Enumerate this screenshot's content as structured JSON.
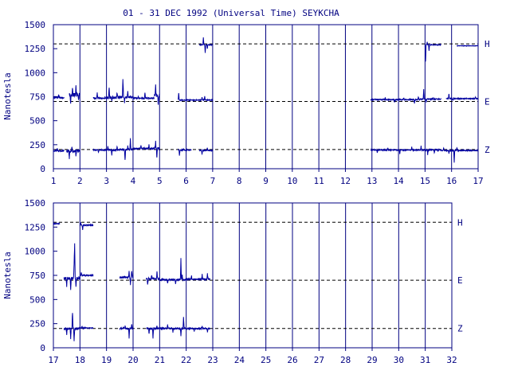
{
  "title": "01 - 31 DEC 1992 (Universal Time) SEYKCHA",
  "ylabel": "Nanotesla",
  "colors": {
    "frame": "#000080",
    "trace": "#0000a0",
    "background": "#ffffff"
  },
  "chart_data": [
    {
      "type": "line",
      "panel": "top",
      "title": "01 - 31 DEC 1992 (Universal Time) SEYKCHA",
      "xlabel": "",
      "ylabel": "Nanotesla",
      "xlim": [
        1,
        17
      ],
      "ylim": [
        0,
        1500
      ],
      "x_ticks": [
        "1",
        "2",
        "3",
        "4",
        "5",
        "6",
        "7",
        "8",
        "9",
        "10",
        "11",
        "12",
        "13",
        "14",
        "15",
        "16",
        "17"
      ],
      "y_ticks": [
        "0",
        "250",
        "500",
        "750",
        "1000",
        "1250",
        "1500"
      ],
      "vertical_grid": true,
      "baselines": [
        {
          "label": "H",
          "value": 1300
        },
        {
          "label": "E",
          "value": 700
        },
        {
          "label": "Z",
          "value": 200
        }
      ],
      "series": [
        {
          "name": "H",
          "segments": [
            {
              "start": 6.5,
              "end": 7.0,
              "base": 1290,
              "noise": 8,
              "spikes": [
                [
                  6.65,
                  80
                ],
                [
                  6.72,
                  -90
                ],
                [
                  6.8,
                  -40
                ]
              ]
            },
            {
              "start": 15.0,
              "end": 15.6,
              "base": 1290,
              "noise": 8,
              "spikes": [
                [
                  15.02,
                  -190
                ],
                [
                  15.08,
                  30
                ],
                [
                  15.15,
                  -60
                ]
              ]
            },
            {
              "start": 16.2,
              "end": 17.0,
              "base": 1280,
              "noise": 5,
              "spikes": []
            }
          ]
        },
        {
          "name": "E",
          "segments": [
            {
              "start": 1.0,
              "end": 1.4,
              "base": 740,
              "noise": 15,
              "spikes": [
                [
                  1.2,
                  30
                ]
              ]
            },
            {
              "start": 1.6,
              "end": 2.0,
              "base": 770,
              "noise": 40,
              "spikes": [
                [
                  1.65,
                  -80
                ],
                [
                  1.72,
                  80
                ],
                [
                  1.85,
                  100
                ],
                [
                  1.95,
                  -60
                ]
              ]
            },
            {
              "start": 2.5,
              "end": 3.0,
              "base": 735,
              "noise": 15,
              "spikes": [
                [
                  2.65,
                  60
                ]
              ]
            },
            {
              "start": 3.0,
              "end": 3.5,
              "base": 740,
              "noise": 30,
              "spikes": [
                [
                  3.1,
                  100
                ],
                [
                  3.2,
                  -40
                ],
                [
                  3.4,
                  60
                ]
              ]
            },
            {
              "start": 3.5,
              "end": 4.0,
              "base": 745,
              "noise": 25,
              "spikes": [
                [
                  3.62,
                  200
                ],
                [
                  3.68,
                  -60
                ],
                [
                  3.8,
                  60
                ]
              ]
            },
            {
              "start": 4.0,
              "end": 4.8,
              "base": 735,
              "noise": 12,
              "spikes": [
                [
                  4.2,
                  20
                ],
                [
                  4.45,
                  60
                ]
              ]
            },
            {
              "start": 4.8,
              "end": 5.0,
              "base": 760,
              "noise": 40,
              "spikes": [
                [
                  4.85,
                  120
                ],
                [
                  4.95,
                  -100
                ]
              ]
            },
            {
              "start": 5.7,
              "end": 7.0,
              "base": 715,
              "noise": 8,
              "spikes": [
                [
                  5.72,
                  80
                ],
                [
                  6.6,
                  30
                ],
                [
                  6.7,
                  40
                ]
              ]
            },
            {
              "start": 12.95,
              "end": 14.8,
              "base": 720,
              "noise": 10,
              "spikes": [
                [
                  13.5,
                  20
                ],
                [
                  13.85,
                  -25
                ],
                [
                  14.2,
                  20
                ],
                [
                  14.6,
                  -40
                ],
                [
                  14.75,
                  30
                ]
              ]
            },
            {
              "start": 14.8,
              "end": 15.6,
              "base": 725,
              "noise": 12,
              "spikes": [
                [
                  14.95,
                  100
                ],
                [
                  15.05,
                  -30
                ],
                [
                  15.3,
                  20
                ]
              ]
            },
            {
              "start": 15.8,
              "end": 17.0,
              "base": 730,
              "noise": 8,
              "spikes": [
                [
                  15.9,
                  50
                ],
                [
                  16.05,
                  -20
                ],
                [
                  16.9,
                  20
                ]
              ]
            }
          ]
        },
        {
          "name": "Z",
          "segments": [
            {
              "start": 1.0,
              "end": 1.4,
              "base": 185,
              "noise": 15,
              "spikes": [
                [
                  1.15,
                  30
                ]
              ]
            },
            {
              "start": 1.5,
              "end": 2.0,
              "base": 185,
              "noise": 30,
              "spikes": [
                [
                  1.6,
                  -70
                ],
                [
                  1.7,
                  40
                ],
                [
                  1.85,
                  -50
                ]
              ]
            },
            {
              "start": 2.5,
              "end": 3.5,
              "base": 195,
              "noise": 15,
              "spikes": [
                [
                  2.7,
                  -30
                ],
                [
                  3.05,
                  40
                ],
                [
                  3.2,
                  -50
                ],
                [
                  3.4,
                  30
                ]
              ]
            },
            {
              "start": 3.5,
              "end": 4.0,
              "base": 200,
              "noise": 20,
              "spikes": [
                [
                  3.7,
                  -110
                ],
                [
                  3.8,
                  40
                ],
                [
                  3.9,
                  110
                ]
              ]
            },
            {
              "start": 4.0,
              "end": 4.8,
              "base": 210,
              "noise": 15,
              "spikes": [
                [
                  4.3,
                  30
                ],
                [
                  4.6,
                  40
                ]
              ]
            },
            {
              "start": 4.8,
              "end": 5.0,
              "base": 210,
              "noise": 30,
              "spikes": [
                [
                  4.85,
                  70
                ],
                [
                  4.9,
                  -100
                ]
              ]
            },
            {
              "start": 5.7,
              "end": 6.2,
              "base": 195,
              "noise": 10,
              "spikes": [
                [
                  5.75,
                  -60
                ],
                [
                  5.9,
                  10
                ]
              ]
            },
            {
              "start": 6.5,
              "end": 7.0,
              "base": 190,
              "noise": 10,
              "spikes": [
                [
                  6.6,
                  -40
                ],
                [
                  6.8,
                  30
                ]
              ]
            },
            {
              "start": 12.95,
              "end": 15.0,
              "base": 195,
              "noise": 10,
              "spikes": [
                [
                  13.2,
                  -30
                ],
                [
                  13.6,
                  20
                ],
                [
                  14.05,
                  -40
                ],
                [
                  14.5,
                  30
                ],
                [
                  14.85,
                  40
                ]
              ]
            },
            {
              "start": 15.0,
              "end": 15.6,
              "base": 195,
              "noise": 15,
              "spikes": [
                [
                  15.1,
                  -50
                ],
                [
                  15.35,
                  -30
                ]
              ]
            },
            {
              "start": 15.6,
              "end": 17.0,
              "base": 190,
              "noise": 10,
              "spikes": [
                [
                  15.7,
                  30
                ],
                [
                  15.9,
                  -30
                ],
                [
                  16.1,
                  -130
                ],
                [
                  16.2,
                  30
                ]
              ]
            }
          ]
        }
      ]
    },
    {
      "type": "line",
      "panel": "bottom",
      "xlabel": "",
      "ylabel": "Nanotesla",
      "xlim": [
        17,
        32
      ],
      "ylim": [
        0,
        1500
      ],
      "x_ticks": [
        "17",
        "18",
        "19",
        "20",
        "21",
        "22",
        "23",
        "24",
        "25",
        "26",
        "27",
        "28",
        "29",
        "30",
        "31",
        "32"
      ],
      "y_ticks": [
        "0",
        "250",
        "500",
        "750",
        "1000",
        "1250",
        "1500"
      ],
      "vertical_grid": true,
      "baselines": [
        {
          "label": "H",
          "value": 1300
        },
        {
          "label": "E",
          "value": 700
        },
        {
          "label": "Z",
          "value": 200
        }
      ],
      "series": [
        {
          "name": "H",
          "segments": [
            {
              "start": 17.0,
              "end": 17.25,
              "base": 1285,
              "noise": 5,
              "spikes": []
            },
            {
              "start": 18.0,
              "end": 18.5,
              "base": 1270,
              "noise": 10,
              "spikes": [
                [
                  18.03,
                  30
                ],
                [
                  18.1,
                  -50
                ]
              ]
            }
          ]
        },
        {
          "name": "E",
          "segments": [
            {
              "start": 17.4,
              "end": 18.0,
              "base": 720,
              "noise": 30,
              "spikes": [
                [
                  17.5,
                  -80
                ],
                [
                  17.65,
                  -120
                ],
                [
                  17.78,
                  140
                ],
                [
                  17.8,
                  350
                ],
                [
                  17.85,
                  -80
                ]
              ]
            },
            {
              "start": 18.0,
              "end": 18.5,
              "base": 750,
              "noise": 10,
              "spikes": [
                [
                  18.05,
                  30
                ]
              ]
            },
            {
              "start": 19.5,
              "end": 20.0,
              "base": 730,
              "noise": 20,
              "spikes": [
                [
                  19.85,
                  60
                ],
                [
                  19.9,
                  -80
                ],
                [
                  19.95,
                  70
                ]
              ]
            },
            {
              "start": 20.5,
              "end": 21.0,
              "base": 715,
              "noise": 20,
              "spikes": [
                [
                  20.55,
                  -70
                ],
                [
                  20.7,
                  40
                ],
                [
                  20.9,
                  80
                ]
              ]
            },
            {
              "start": 21.0,
              "end": 22.0,
              "base": 705,
              "noise": 15,
              "spikes": [
                [
                  21.3,
                  -40
                ],
                [
                  21.6,
                  -50
                ],
                [
                  21.8,
                  220
                ],
                [
                  21.85,
                  50
                ]
              ]
            },
            {
              "start": 22.0,
              "end": 22.9,
              "base": 710,
              "noise": 15,
              "spikes": [
                [
                  22.2,
                  40
                ],
                [
                  22.6,
                  50
                ],
                [
                  22.8,
                  60
                ]
              ]
            }
          ]
        },
        {
          "name": "Z",
          "segments": [
            {
              "start": 17.4,
              "end": 18.0,
              "base": 200,
              "noise": 25,
              "spikes": [
                [
                  17.5,
                  -60
                ],
                [
                  17.65,
                  -100
                ],
                [
                  17.72,
                  180
                ],
                [
                  17.78,
                  -130
                ]
              ]
            },
            {
              "start": 18.0,
              "end": 18.5,
              "base": 205,
              "noise": 8,
              "spikes": [
                [
                  18.08,
                  20
                ]
              ]
            },
            {
              "start": 19.5,
              "end": 20.0,
              "base": 200,
              "noise": 20,
              "spikes": [
                [
                  19.7,
                  30
                ],
                [
                  19.85,
                  -100
                ],
                [
                  19.95,
                  40
                ]
              ]
            },
            {
              "start": 20.5,
              "end": 21.0,
              "base": 200,
              "noise": 20,
              "spikes": [
                [
                  20.6,
                  -60
                ],
                [
                  20.75,
                  -100
                ],
                [
                  20.9,
                  30
                ]
              ]
            },
            {
              "start": 21.0,
              "end": 22.0,
              "base": 200,
              "noise": 15,
              "spikes": [
                [
                  21.3,
                  40
                ],
                [
                  21.5,
                  -40
                ],
                [
                  21.8,
                  -80
                ],
                [
                  21.9,
                  120
                ]
              ]
            },
            {
              "start": 22.0,
              "end": 22.9,
              "base": 200,
              "noise": 12,
              "spikes": [
                [
                  22.3,
                  -30
                ],
                [
                  22.6,
                  30
                ],
                [
                  22.8,
                  -40
                ]
              ]
            }
          ]
        }
      ]
    }
  ]
}
